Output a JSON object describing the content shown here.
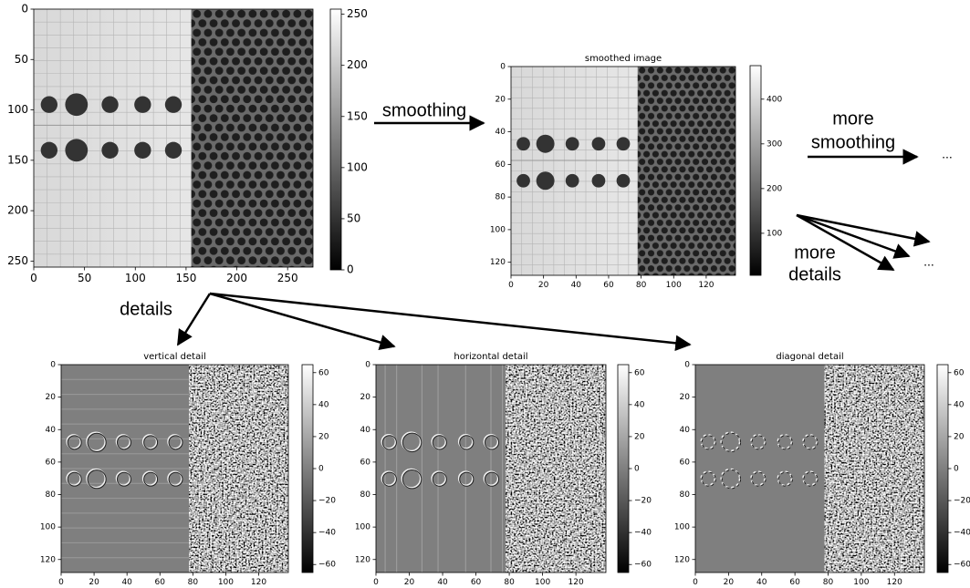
{
  "labels": {
    "smoothing": "smoothing",
    "more_smoothing": [
      "more",
      "smoothing"
    ],
    "more_details": [
      "more",
      "details"
    ],
    "details": "details",
    "ellipsis_smoothing": "...",
    "ellipsis_details": "..."
  },
  "panels": [
    {
      "xlim": [
        0,
        275
      ],
      "ylim": [
        0,
        256
      ],
      "xticks": [
        0,
        50,
        100,
        150,
        200,
        250
      ],
      "yticks": [
        0,
        50,
        100,
        150,
        200,
        250
      ],
      "colorbar": {
        "lim": [
          0,
          255
        ],
        "ticks": [
          0,
          50,
          100,
          150,
          200,
          250
        ]
      }
    },
    {
      "title": "smoothed image",
      "xlim": [
        0,
        138
      ],
      "ylim": [
        0,
        128
      ],
      "xticks": [
        0,
        20,
        40,
        60,
        80,
        100,
        120
      ],
      "yticks": [
        0,
        20,
        40,
        60,
        80,
        100,
        120
      ],
      "colorbar": {
        "lim": [
          6,
          475
        ],
        "ticks": [
          100,
          200,
          300,
          400
        ]
      }
    },
    {
      "title": "vertical detail",
      "xlim": [
        0,
        138
      ],
      "ylim": [
        0,
        128
      ],
      "xticks": [
        0,
        20,
        40,
        60,
        80,
        100,
        120
      ],
      "yticks": [
        0,
        20,
        40,
        60,
        80,
        100,
        120
      ],
      "colorbar": {
        "lim": [
          -65,
          65
        ],
        "ticks": [
          {
            "value": -60,
            "label": "−60"
          },
          {
            "value": -40,
            "label": "−40"
          },
          {
            "value": -20,
            "label": "−20"
          },
          0,
          20,
          40,
          60
        ]
      }
    },
    {
      "title": "horizontal detail",
      "xlim": [
        0,
        138
      ],
      "ylim": [
        0,
        128
      ],
      "xticks": [
        0,
        20,
        40,
        60,
        80,
        100,
        120
      ],
      "yticks": [
        0,
        20,
        40,
        60,
        80,
        100,
        120
      ],
      "colorbar": {
        "lim": [
          -65,
          65
        ],
        "ticks": [
          {
            "value": -60,
            "label": "−60"
          },
          {
            "value": -40,
            "label": "−40"
          },
          {
            "value": -20,
            "label": "−20"
          },
          0,
          20,
          40,
          60
        ]
      }
    },
    {
      "title": "diagonal detail",
      "xlim": [
        0,
        138
      ],
      "ylim": [
        0,
        128
      ],
      "xticks": [
        0,
        20,
        40,
        60,
        80,
        100,
        120
      ],
      "yticks": [
        0,
        20,
        40,
        60,
        80,
        100,
        120
      ],
      "colorbar": {
        "lim": [
          -65,
          65
        ],
        "ticks": [
          {
            "value": -60,
            "label": "−60"
          },
          {
            "value": -40,
            "label": "−40"
          },
          {
            "value": -20,
            "label": "−20"
          },
          0,
          20,
          40,
          60
        ]
      }
    }
  ]
}
